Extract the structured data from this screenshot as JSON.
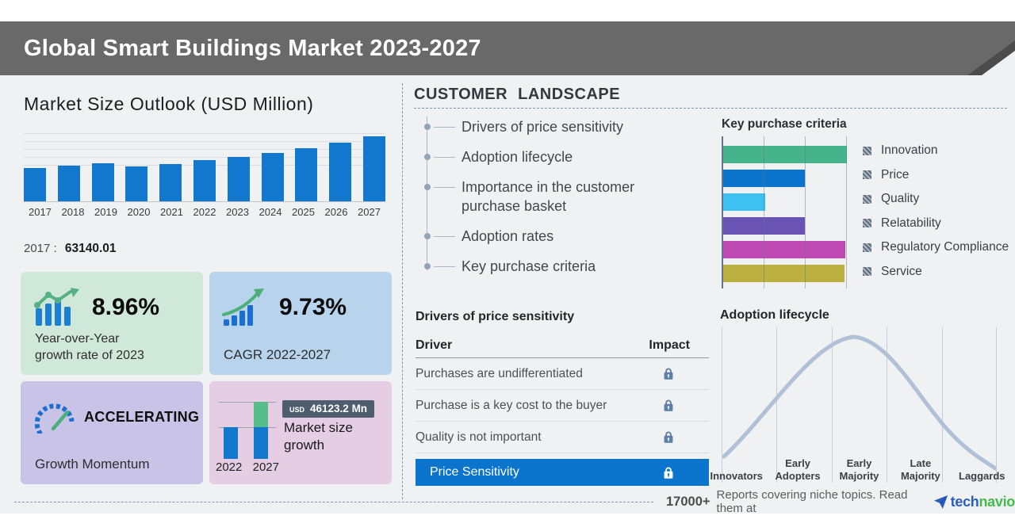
{
  "banner": {
    "title": "Global Smart Buildings Market 2023-2027"
  },
  "market_outlook": {
    "title": "Market Size Outlook (USD Million)",
    "base_year_label": "2017 :",
    "base_year_value": "63140.01"
  },
  "cards": {
    "yoy": {
      "value": "8.96%",
      "label_line1": "Year-over-Year",
      "label_line2": "growth rate of 2023"
    },
    "cagr": {
      "value": "9.73%",
      "label": "CAGR 2022-2027"
    },
    "momentum": {
      "value": "ACCELERATING",
      "label": "Growth Momentum"
    },
    "size_growth": {
      "currency": "USD",
      "amount": "46123.2 Mn",
      "label_line1": "Market size",
      "label_line2": "growth",
      "year_start": "2022",
      "year_end": "2027"
    }
  },
  "customer_landscape": {
    "title": "CUSTOMER  LANDSCAPE",
    "items": [
      "Drivers of price sensitivity",
      "Adoption lifecycle",
      "Importance in the customer purchase basket",
      "Adoption rates",
      "Key purchase criteria"
    ]
  },
  "price_sensitivity": {
    "title": "Drivers of price sensitivity",
    "col_driver": "Driver",
    "col_impact": "Impact",
    "rows": [
      "Purchases are undifferentiated",
      "Purchase is a key cost to the buyer",
      "Quality is not important"
    ],
    "highlight_row": "Price Sensitivity"
  },
  "footer": {
    "count": "17000+",
    "text": "Reports covering niche topics. Read them at",
    "brand_blue": "tech",
    "brand_green": "navio"
  },
  "chart_data": [
    {
      "type": "bar",
      "name": "market_size_outlook",
      "title": "Market Size Outlook (USD Million)",
      "categories": [
        "2017",
        "2018",
        "2019",
        "2020",
        "2021",
        "2022",
        "2023",
        "2024",
        "2025",
        "2026",
        "2027"
      ],
      "values": [
        63140.01,
        68100,
        73300,
        66600,
        71700,
        78082,
        85078,
        92600,
        101400,
        112200,
        124205
      ],
      "ylabel": "USD Million",
      "ylim": [
        0,
        130000
      ],
      "grid": true,
      "bar_color": "#1278cd",
      "annotation": "2017 : 63140.01"
    },
    {
      "type": "bar",
      "name": "key_purchase_criteria",
      "title": "Key purchase criteria",
      "orientation": "horizontal",
      "categories": [
        "Innovation",
        "Price",
        "Quality",
        "Relatability",
        "Regulatory Compliance",
        "Service"
      ],
      "values": [
        100,
        66,
        34,
        66,
        99,
        98
      ],
      "value_unit": "relative_length_percent_estimated",
      "colors": [
        "#45b38b",
        "#0b74cc",
        "#3ec0f0",
        "#6954b3",
        "#c04ab4",
        "#bbb040"
      ],
      "legend_position": "right",
      "grid": true
    },
    {
      "type": "bar",
      "name": "market_size_growth",
      "title": "Market size growth",
      "categories": [
        "2022",
        "2027"
      ],
      "values": [
        78082,
        124205
      ],
      "annotation": "USD 46123.2 Mn",
      "bar_color": "#1278cd",
      "growth_color": "#57bd8a"
    },
    {
      "type": "line",
      "name": "adoption_lifecycle",
      "title": "Adoption lifecycle",
      "shape": "bell_curve",
      "categories": [
        "Innovators",
        "Early Adopters",
        "Early Majority",
        "Late Majority",
        "Laggards"
      ],
      "line_color": "#afc0d7",
      "grid": true
    }
  ]
}
